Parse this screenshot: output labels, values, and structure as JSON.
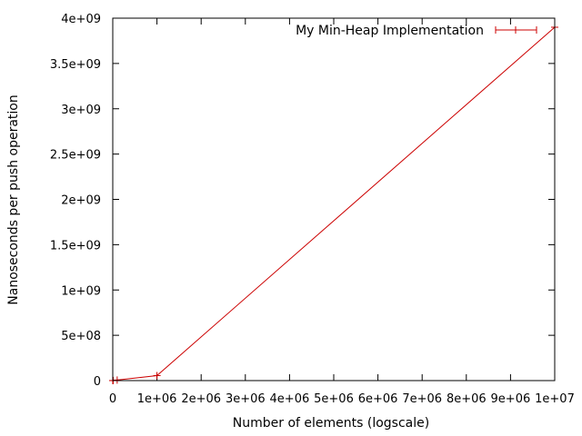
{
  "chart_data": {
    "type": "line",
    "title": "",
    "xlabel": "Number of elements (logscale)",
    "ylabel": "Nanoseconds per push operation",
    "xlim": [
      0,
      10000000
    ],
    "ylim": [
      0,
      4000000000
    ],
    "grid": false,
    "legend_position": "top-right",
    "x_ticks": [
      {
        "value": 0,
        "label": "0"
      },
      {
        "value": 1000000,
        "label": "1e+06"
      },
      {
        "value": 2000000,
        "label": "2e+06"
      },
      {
        "value": 3000000,
        "label": "3e+06"
      },
      {
        "value": 4000000,
        "label": "4e+06"
      },
      {
        "value": 5000000,
        "label": "5e+06"
      },
      {
        "value": 6000000,
        "label": "6e+06"
      },
      {
        "value": 7000000,
        "label": "7e+06"
      },
      {
        "value": 8000000,
        "label": "8e+06"
      },
      {
        "value": 9000000,
        "label": "9e+06"
      },
      {
        "value": 10000000,
        "label": "1e+07"
      }
    ],
    "y_ticks": [
      {
        "value": 0,
        "label": "0"
      },
      {
        "value": 500000000,
        "label": "5e+08"
      },
      {
        "value": 1000000000,
        "label": "1e+09"
      },
      {
        "value": 1500000000,
        "label": "1.5e+09"
      },
      {
        "value": 2000000000,
        "label": "2e+09"
      },
      {
        "value": 2500000000,
        "label": "2.5e+09"
      },
      {
        "value": 3000000000,
        "label": "3e+09"
      },
      {
        "value": 3500000000,
        "label": "3.5e+09"
      },
      {
        "value": 4000000000,
        "label": "4e+09"
      }
    ],
    "series": [
      {
        "name": "My Min-Heap Implementation",
        "color": "#cc0000",
        "x": [
          10,
          100,
          1000,
          10000,
          100000,
          1000000,
          10000000
        ],
        "y": [
          0,
          0,
          0,
          1000000,
          6000000,
          55000000,
          3900000000
        ]
      }
    ]
  }
}
